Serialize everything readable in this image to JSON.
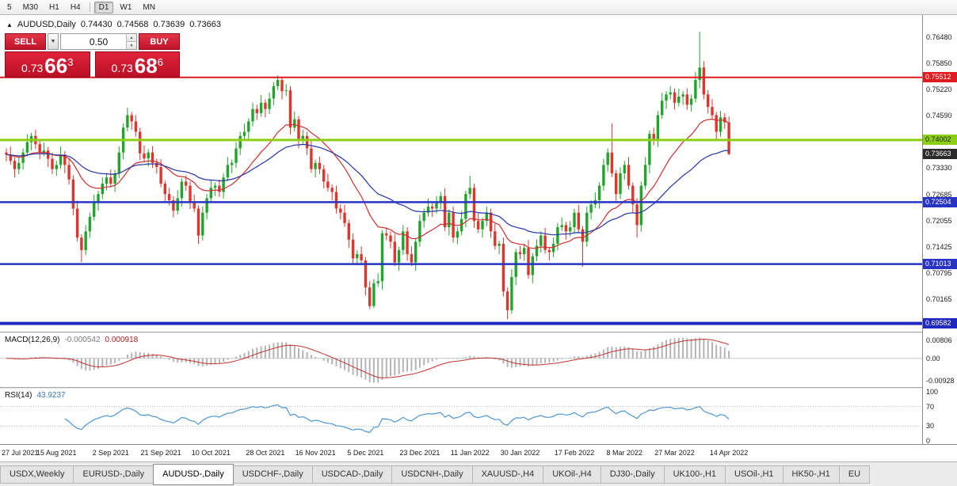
{
  "toolbar": {
    "items": [
      {
        "label": "5",
        "active": false,
        "sep_after": false
      },
      {
        "label": "M30",
        "active": false,
        "sep_after": false
      },
      {
        "label": "H1",
        "active": false,
        "sep_after": false
      },
      {
        "label": "H4",
        "active": false,
        "sep_after": true
      },
      {
        "label": "D1",
        "active": true,
        "sep_after": false
      },
      {
        "label": "W1",
        "active": false,
        "sep_after": false
      },
      {
        "label": "MN",
        "active": false,
        "sep_after": false
      }
    ]
  },
  "chart_header": {
    "marker": "▲",
    "symbol": "AUDUSD,Daily",
    "open": "0.74430",
    "high": "0.74568",
    "low": "0.73639",
    "close": "0.73663"
  },
  "trade_panel": {
    "sell_label": "SELL",
    "buy_label": "BUY",
    "volume": "0.50",
    "dropdown_icon": "▼",
    "spin_up": "▲",
    "spin_down": "▼",
    "bid": {
      "prefix": "0.73",
      "big": "66",
      "sup": "3"
    },
    "ask": {
      "prefix": "0.73",
      "big": "68",
      "sup": "6"
    }
  },
  "price_axis": {
    "ticks": [
      "0.76480",
      "0.75850",
      "0.75220",
      "0.74590",
      "0.73960",
      "0.73330",
      "0.72685",
      "0.72055",
      "0.71425",
      "0.70795",
      "0.70165"
    ]
  },
  "levels": [
    {
      "price": 0.75512,
      "label": "0.75512",
      "color": "#e01a1e",
      "label_text": "#ffffff",
      "thickness": 2
    },
    {
      "price": 0.74002,
      "label": "0.74002",
      "color": "#8ccf12",
      "label_text": "#102000",
      "thickness": 3
    },
    {
      "price": 0.72504,
      "label": "0.72504",
      "color": "#2733c4",
      "label_text": "#ffffff",
      "thickness": 2.5
    },
    {
      "price": 0.71013,
      "label": "0.71013",
      "color": "#2733c4",
      "label_text": "#ffffff",
      "thickness": 2.5
    },
    {
      "price": 0.69582,
      "label": "0.69582",
      "color": "#2028bf",
      "label_text": "#ffffff",
      "thickness": 4
    }
  ],
  "current_price_label": {
    "text": "0.73663",
    "price": 0.73663,
    "bg": "#2b2b2b",
    "fg": "#ffffff"
  },
  "colors": {
    "bull": "#22a42c",
    "bear": "#df352c",
    "macd_hist": "#b4b4b4",
    "macd_signal": "#c23232",
    "rsi": "#4e96d2"
  },
  "macd": {
    "label": "MACD(12,26,9)",
    "main_value": "-0.000542",
    "signal_value": "0.000918",
    "fast": 12,
    "slow": 26,
    "signal": 9,
    "axis_top": "0.00806",
    "axis_zero": "0.00",
    "axis_bottom": "-0.00928"
  },
  "rsi": {
    "label": "RSI(14)",
    "value": "43.9237",
    "period": 14,
    "axis": [
      100,
      70,
      30,
      0
    ],
    "levels": [
      70,
      30
    ]
  },
  "tabs": {
    "items": [
      {
        "label": "USDX,Weekly",
        "active": false
      },
      {
        "label": "EURUSD-,Daily",
        "active": false
      },
      {
        "label": "AUDUSD-,Daily",
        "active": true
      },
      {
        "label": "USDCHF-,Daily",
        "active": false
      },
      {
        "label": "USDCAD-,Daily",
        "active": false
      },
      {
        "label": "USDCNH-,Daily",
        "active": false
      },
      {
        "label": "XAUUSD-,H4",
        "active": false
      },
      {
        "label": "UKOil-,H4",
        "active": false
      },
      {
        "label": "DJ30-,Daily",
        "active": false
      },
      {
        "label": "UK100-,H1",
        "active": false
      },
      {
        "label": "USOil-,H1",
        "active": false
      },
      {
        "label": "HK50-,H1",
        "active": false
      },
      {
        "label": "EU",
        "active": false
      }
    ]
  },
  "chart_data": {
    "type": "candlestick",
    "symbol": "AUDUSD",
    "timeframe": "Daily",
    "ylim": [
      0.694,
      0.77
    ],
    "grid": false,
    "moving_averages": [
      {
        "name": "ma-fast",
        "period": 20,
        "color": "#cd2f2f"
      },
      {
        "name": "ma-slow",
        "period": 45,
        "color": "#2433a8"
      }
    ],
    "date_labels": [
      {
        "text": "27 Jul 2021",
        "index": 0
      },
      {
        "text": "15 Aug 2021",
        "index": 12
      },
      {
        "text": "2 Sep 2021",
        "index": 25
      },
      {
        "text": "21 Sep 2021",
        "index": 37
      },
      {
        "text": "10 Oct 2021",
        "index": 49
      },
      {
        "text": "28 Oct 2021",
        "index": 62
      },
      {
        "text": "16 Nov 2021",
        "index": 74
      },
      {
        "text": "5 Dec 2021",
        "index": 86
      },
      {
        "text": "23 Dec 2021",
        "index": 99
      },
      {
        "text": "11 Jan 2022",
        "index": 111
      },
      {
        "text": "30 Jan 2022",
        "index": 123
      },
      {
        "text": "17 Feb 2022",
        "index": 136
      },
      {
        "text": "8 Mar 2022",
        "index": 148
      },
      {
        "text": "27 Mar 2022",
        "index": 160
      },
      {
        "text": "14 Apr 2022",
        "index": 173
      }
    ],
    "ohlc": [
      [
        0.737,
        0.738,
        0.7349,
        0.7365
      ],
      [
        0.7365,
        0.7384,
        0.7341,
        0.735
      ],
      [
        0.735,
        0.7358,
        0.731,
        0.733
      ],
      [
        0.733,
        0.736,
        0.7318,
        0.7345
      ],
      [
        0.7345,
        0.738,
        0.7329,
        0.737
      ],
      [
        0.737,
        0.7414,
        0.7361,
        0.7395
      ],
      [
        0.7395,
        0.7418,
        0.7375,
        0.741
      ],
      [
        0.741,
        0.7425,
        0.7378,
        0.739
      ],
      [
        0.739,
        0.74,
        0.7354,
        0.737
      ],
      [
        0.737,
        0.7394,
        0.7361,
        0.7375
      ],
      [
        0.7375,
        0.7383,
        0.7335,
        0.7355
      ],
      [
        0.7355,
        0.737,
        0.7318,
        0.733
      ],
      [
        0.733,
        0.735,
        0.7314,
        0.734
      ],
      [
        0.734,
        0.7384,
        0.7331,
        0.7365
      ],
      [
        0.7365,
        0.7373,
        0.732,
        0.734
      ],
      [
        0.734,
        0.7355,
        0.7293,
        0.7305
      ],
      [
        0.7305,
        0.7315,
        0.7219,
        0.7235
      ],
      [
        0.7235,
        0.7254,
        0.7156,
        0.7165
      ],
      [
        0.7165,
        0.7173,
        0.7106,
        0.7135
      ],
      [
        0.7135,
        0.7195,
        0.7123,
        0.718
      ],
      [
        0.718,
        0.7225,
        0.7164,
        0.7215
      ],
      [
        0.7215,
        0.7269,
        0.7206,
        0.725
      ],
      [
        0.725,
        0.7278,
        0.723,
        0.727
      ],
      [
        0.727,
        0.731,
        0.7258,
        0.7295
      ],
      [
        0.7295,
        0.732,
        0.7279,
        0.731
      ],
      [
        0.731,
        0.7329,
        0.7286,
        0.7295
      ],
      [
        0.7295,
        0.7328,
        0.7275,
        0.732
      ],
      [
        0.732,
        0.7385,
        0.7308,
        0.737
      ],
      [
        0.737,
        0.744,
        0.7354,
        0.743
      ],
      [
        0.743,
        0.7478,
        0.7421,
        0.746
      ],
      [
        0.746,
        0.7468,
        0.7425,
        0.7445
      ],
      [
        0.7445,
        0.746,
        0.7408,
        0.742
      ],
      [
        0.742,
        0.743,
        0.7352,
        0.7368
      ],
      [
        0.7368,
        0.7387,
        0.7347,
        0.7356
      ],
      [
        0.7356,
        0.7378,
        0.7336,
        0.737
      ],
      [
        0.737,
        0.7385,
        0.7333,
        0.7345
      ],
      [
        0.7345,
        0.7355,
        0.7319,
        0.7335
      ],
      [
        0.7335,
        0.7354,
        0.7286,
        0.7295
      ],
      [
        0.7295,
        0.7303,
        0.725,
        0.727
      ],
      [
        0.727,
        0.7285,
        0.7243,
        0.7255
      ],
      [
        0.7255,
        0.7265,
        0.7214,
        0.723
      ],
      [
        0.723,
        0.7279,
        0.7221,
        0.726
      ],
      [
        0.726,
        0.7308,
        0.724,
        0.73
      ],
      [
        0.73,
        0.7315,
        0.7278,
        0.729
      ],
      [
        0.729,
        0.73,
        0.7234,
        0.725
      ],
      [
        0.725,
        0.7269,
        0.7226,
        0.7235
      ],
      [
        0.7235,
        0.7243,
        0.715,
        0.717
      ],
      [
        0.717,
        0.724,
        0.7158,
        0.7225
      ],
      [
        0.7225,
        0.727,
        0.7209,
        0.726
      ],
      [
        0.726,
        0.7304,
        0.7251,
        0.7285
      ],
      [
        0.7285,
        0.7298,
        0.7265,
        0.729
      ],
      [
        0.729,
        0.7305,
        0.7263,
        0.7275
      ],
      [
        0.7275,
        0.732,
        0.7259,
        0.731
      ],
      [
        0.731,
        0.7359,
        0.7301,
        0.734
      ],
      [
        0.734,
        0.7353,
        0.732,
        0.7345
      ],
      [
        0.7345,
        0.7395,
        0.7333,
        0.738
      ],
      [
        0.738,
        0.742,
        0.7364,
        0.741
      ],
      [
        0.741,
        0.7439,
        0.7401,
        0.742
      ],
      [
        0.742,
        0.7453,
        0.74,
        0.7445
      ],
      [
        0.7445,
        0.749,
        0.7433,
        0.7475
      ],
      [
        0.7475,
        0.7485,
        0.7449,
        0.7465
      ],
      [
        0.7465,
        0.7509,
        0.7456,
        0.749
      ],
      [
        0.749,
        0.7498,
        0.7455,
        0.7475
      ],
      [
        0.7475,
        0.7515,
        0.7463,
        0.75
      ],
      [
        0.75,
        0.754,
        0.7484,
        0.753
      ],
      [
        0.753,
        0.7556,
        0.7521,
        0.7545
      ],
      [
        0.7545,
        0.7553,
        0.7498,
        0.7518
      ],
      [
        0.7518,
        0.7535,
        0.7506,
        0.752
      ],
      [
        0.752,
        0.753,
        0.7414,
        0.743
      ],
      [
        0.743,
        0.7469,
        0.7421,
        0.745
      ],
      [
        0.745,
        0.7458,
        0.738,
        0.74
      ],
      [
        0.74,
        0.7425,
        0.7388,
        0.741
      ],
      [
        0.741,
        0.742,
        0.7364,
        0.738
      ],
      [
        0.738,
        0.7399,
        0.7321,
        0.733
      ],
      [
        0.733,
        0.7353,
        0.731,
        0.7345
      ],
      [
        0.7345,
        0.736,
        0.7318,
        0.733
      ],
      [
        0.733,
        0.734,
        0.7284,
        0.73
      ],
      [
        0.73,
        0.7319,
        0.7276,
        0.7285
      ],
      [
        0.7285,
        0.7293,
        0.7255,
        0.7275
      ],
      [
        0.7275,
        0.729,
        0.7223,
        0.7235
      ],
      [
        0.7235,
        0.7245,
        0.7209,
        0.7225
      ],
      [
        0.7225,
        0.7244,
        0.7191,
        0.72
      ],
      [
        0.72,
        0.7208,
        0.714,
        0.716
      ],
      [
        0.716,
        0.7175,
        0.7103,
        0.7115
      ],
      [
        0.7115,
        0.7135,
        0.7099,
        0.7125
      ],
      [
        0.7125,
        0.7144,
        0.7101,
        0.711
      ],
      [
        0.711,
        0.7118,
        0.7025,
        0.7045
      ],
      [
        0.7045,
        0.706,
        0.6993,
        0.7
      ],
      [
        0.7,
        0.7065,
        0.6995,
        0.7055
      ],
      [
        0.7055,
        0.7079,
        0.7046,
        0.706
      ],
      [
        0.706,
        0.7183,
        0.704,
        0.7175
      ],
      [
        0.7175,
        0.719,
        0.7158,
        0.717
      ],
      [
        0.717,
        0.718,
        0.7139,
        0.7155
      ],
      [
        0.7155,
        0.7174,
        0.7096,
        0.7105
      ],
      [
        0.7105,
        0.7143,
        0.7085,
        0.7135
      ],
      [
        0.7135,
        0.7195,
        0.7123,
        0.718
      ],
      [
        0.718,
        0.719,
        0.7109,
        0.7125
      ],
      [
        0.7125,
        0.7144,
        0.7096,
        0.7105
      ],
      [
        0.7105,
        0.7163,
        0.7085,
        0.7155
      ],
      [
        0.7155,
        0.722,
        0.7143,
        0.7205
      ],
      [
        0.7205,
        0.7235,
        0.7189,
        0.7225
      ],
      [
        0.7225,
        0.7259,
        0.7216,
        0.724
      ],
      [
        0.724,
        0.7248,
        0.7215,
        0.7235
      ],
      [
        0.7235,
        0.7265,
        0.7223,
        0.725
      ],
      [
        0.725,
        0.7275,
        0.7234,
        0.7265
      ],
      [
        0.7265,
        0.7284,
        0.7181,
        0.719
      ],
      [
        0.719,
        0.7233,
        0.717,
        0.7225
      ],
      [
        0.7225,
        0.724,
        0.7153,
        0.7165
      ],
      [
        0.7165,
        0.719,
        0.7149,
        0.718
      ],
      [
        0.718,
        0.7229,
        0.7171,
        0.721
      ],
      [
        0.721,
        0.7278,
        0.719,
        0.727
      ],
      [
        0.727,
        0.7314,
        0.7258,
        0.7285
      ],
      [
        0.7285,
        0.7295,
        0.7189,
        0.7205
      ],
      [
        0.7205,
        0.7224,
        0.7176,
        0.7185
      ],
      [
        0.7185,
        0.7213,
        0.7165,
        0.7205
      ],
      [
        0.7205,
        0.724,
        0.7193,
        0.7225
      ],
      [
        0.7225,
        0.7235,
        0.7164,
        0.718
      ],
      [
        0.718,
        0.7199,
        0.7136,
        0.7145
      ],
      [
        0.7145,
        0.7158,
        0.7125,
        0.715
      ],
      [
        0.715,
        0.7165,
        0.7023,
        0.7035
      ],
      [
        0.7035,
        0.7045,
        0.6968,
        0.699
      ],
      [
        0.699,
        0.7089,
        0.6981,
        0.707
      ],
      [
        0.707,
        0.7138,
        0.705,
        0.713
      ],
      [
        0.713,
        0.7145,
        0.7113,
        0.7125
      ],
      [
        0.7125,
        0.715,
        0.7109,
        0.714
      ],
      [
        0.714,
        0.7159,
        0.7066,
        0.7075
      ],
      [
        0.7075,
        0.7128,
        0.7055,
        0.712
      ],
      [
        0.712,
        0.716,
        0.7108,
        0.7145
      ],
      [
        0.7145,
        0.718,
        0.7129,
        0.717
      ],
      [
        0.717,
        0.7189,
        0.7126,
        0.7135
      ],
      [
        0.7135,
        0.7143,
        0.711,
        0.713
      ],
      [
        0.713,
        0.7165,
        0.7118,
        0.715
      ],
      [
        0.715,
        0.72,
        0.7134,
        0.719
      ],
      [
        0.719,
        0.7214,
        0.7181,
        0.7195
      ],
      [
        0.7195,
        0.7203,
        0.716,
        0.718
      ],
      [
        0.718,
        0.7205,
        0.7168,
        0.719
      ],
      [
        0.719,
        0.7235,
        0.7174,
        0.7225
      ],
      [
        0.7225,
        0.7244,
        0.7176,
        0.7185
      ],
      [
        0.7185,
        0.7193,
        0.7095,
        0.7155
      ],
      [
        0.7155,
        0.724,
        0.7143,
        0.7225
      ],
      [
        0.7225,
        0.7255,
        0.7209,
        0.7245
      ],
      [
        0.7245,
        0.7274,
        0.7236,
        0.7255
      ],
      [
        0.7255,
        0.7298,
        0.7235,
        0.729
      ],
      [
        0.729,
        0.7355,
        0.7278,
        0.734
      ],
      [
        0.734,
        0.738,
        0.7324,
        0.737
      ],
      [
        0.737,
        0.744,
        0.7311,
        0.732
      ],
      [
        0.732,
        0.7328,
        0.725,
        0.727
      ],
      [
        0.727,
        0.7335,
        0.7258,
        0.732
      ],
      [
        0.732,
        0.735,
        0.7304,
        0.734
      ],
      [
        0.734,
        0.7359,
        0.7281,
        0.729
      ],
      [
        0.729,
        0.7298,
        0.7225,
        0.7245
      ],
      [
        0.7245,
        0.726,
        0.7165,
        0.7195
      ],
      [
        0.7195,
        0.73,
        0.7179,
        0.729
      ],
      [
        0.729,
        0.7359,
        0.7281,
        0.734
      ],
      [
        0.734,
        0.7423,
        0.732,
        0.7415
      ],
      [
        0.7415,
        0.743,
        0.7388,
        0.74
      ],
      [
        0.74,
        0.747,
        0.7384,
        0.746
      ],
      [
        0.746,
        0.7514,
        0.7451,
        0.7495
      ],
      [
        0.7495,
        0.7518,
        0.7475,
        0.751
      ],
      [
        0.751,
        0.753,
        0.7498,
        0.7515
      ],
      [
        0.7515,
        0.7525,
        0.7474,
        0.749
      ],
      [
        0.749,
        0.7524,
        0.7481,
        0.7505
      ],
      [
        0.7505,
        0.7518,
        0.7485,
        0.751
      ],
      [
        0.751,
        0.7525,
        0.7473,
        0.7485
      ],
      [
        0.7485,
        0.751,
        0.7469,
        0.75
      ],
      [
        0.75,
        0.7564,
        0.7491,
        0.7545
      ],
      [
        0.7545,
        0.7661,
        0.7525,
        0.7575
      ],
      [
        0.7575,
        0.759,
        0.7498,
        0.751
      ],
      [
        0.751,
        0.752,
        0.7464,
        0.748
      ],
      [
        0.748,
        0.7499,
        0.7451,
        0.746
      ],
      [
        0.746,
        0.7468,
        0.74,
        0.742
      ],
      [
        0.742,
        0.747,
        0.7408,
        0.7455
      ],
      [
        0.7455,
        0.7465,
        0.7427,
        0.7443
      ],
      [
        0.7443,
        0.74568,
        0.73639,
        0.73663
      ]
    ]
  }
}
